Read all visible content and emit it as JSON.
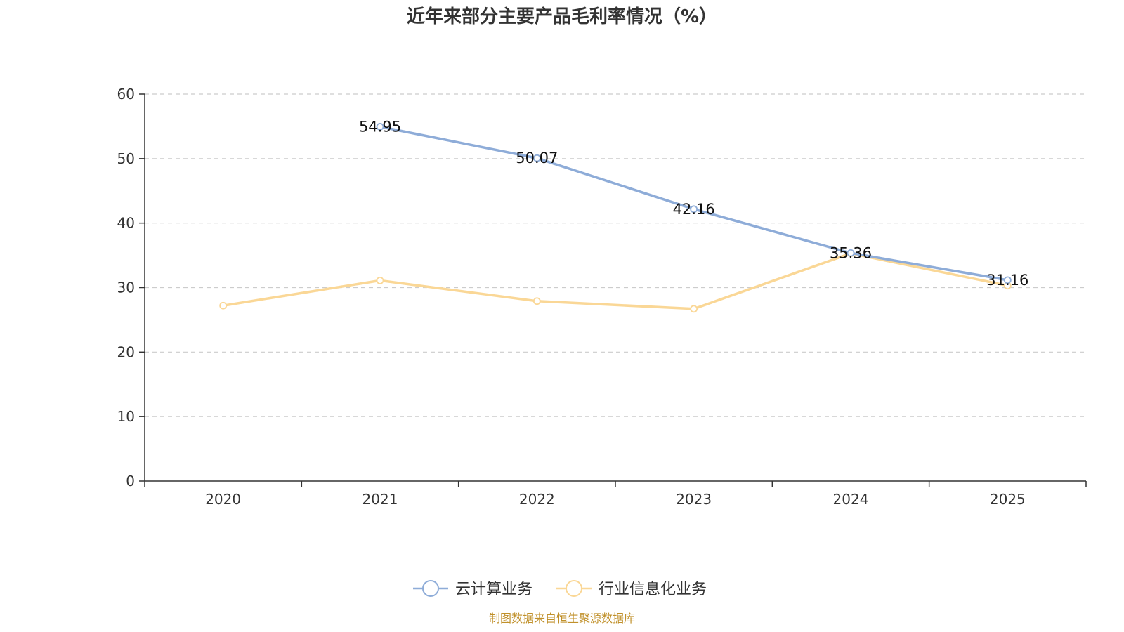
{
  "chart_data": {
    "type": "line",
    "title": "近年来部分主要产品毛利率情况（%）",
    "xlabel": "",
    "ylabel": "",
    "categories": [
      "2020",
      "2021",
      "2022",
      "2023",
      "2024",
      "2025"
    ],
    "ylim": [
      0,
      60
    ],
    "yticks": [
      0,
      10,
      20,
      30,
      40,
      50,
      60
    ],
    "grid": true,
    "legend_position": "bottom-center",
    "series": [
      {
        "name": "云计算业务",
        "color": "#8eacd8",
        "values": [
          null,
          54.95,
          50.07,
          42.16,
          35.36,
          31.16
        ],
        "labels": [
          null,
          "54.95",
          "50.07",
          "42.16",
          "35.36",
          "31.16"
        ]
      },
      {
        "name": "行业信息化业务",
        "color": "#fad796",
        "values": [
          27.2,
          31.1,
          27.9,
          26.7,
          35.3,
          30.3
        ],
        "labels": [
          null,
          null,
          null,
          null,
          null,
          null
        ]
      }
    ],
    "source": "制图数据来自恒生聚源数据库"
  }
}
